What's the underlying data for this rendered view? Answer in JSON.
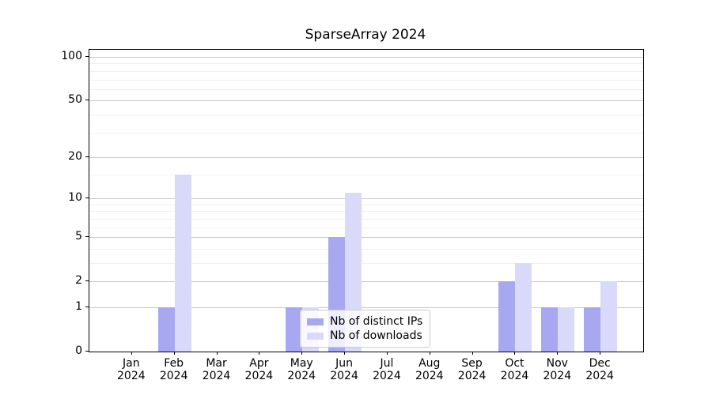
{
  "title": "SparseArray 2024",
  "chart_data": {
    "type": "bar",
    "title": "SparseArray 2024",
    "xlabel": "",
    "ylabel": "",
    "categories": [
      "Jan 2024",
      "Feb 2024",
      "Mar 2024",
      "Apr 2024",
      "May 2024",
      "Jun 2024",
      "Jul 2024",
      "Aug 2024",
      "Sep 2024",
      "Oct 2024",
      "Nov 2024",
      "Dec 2024"
    ],
    "series": [
      {
        "name": "Nb of distinct IPs",
        "color": "#a8a8f0",
        "values": [
          0,
          1,
          0,
          0,
          1,
          5,
          0,
          0,
          0,
          2,
          1,
          1
        ]
      },
      {
        "name": "Nb of downloads",
        "color": "#d9d9fa",
        "values": [
          0,
          15,
          0,
          0,
          1,
          11,
          0,
          0,
          0,
          3,
          1,
          2
        ]
      }
    ],
    "yscale": "log10(1+v)",
    "ylim": [
      0,
      112
    ],
    "yticks": [
      0,
      1,
      2,
      5,
      10,
      20,
      50,
      100
    ],
    "minor_yticks": [
      3,
      4,
      6,
      7,
      8,
      9,
      15,
      30,
      40,
      60,
      70,
      80,
      90
    ],
    "grid": "on",
    "legend_position": "lower center"
  },
  "colors": {
    "axis": "#000000",
    "grid_major": "#c9c9c9",
    "grid_minor": "#f0f0f0",
    "legend_border": "#cccccc"
  }
}
